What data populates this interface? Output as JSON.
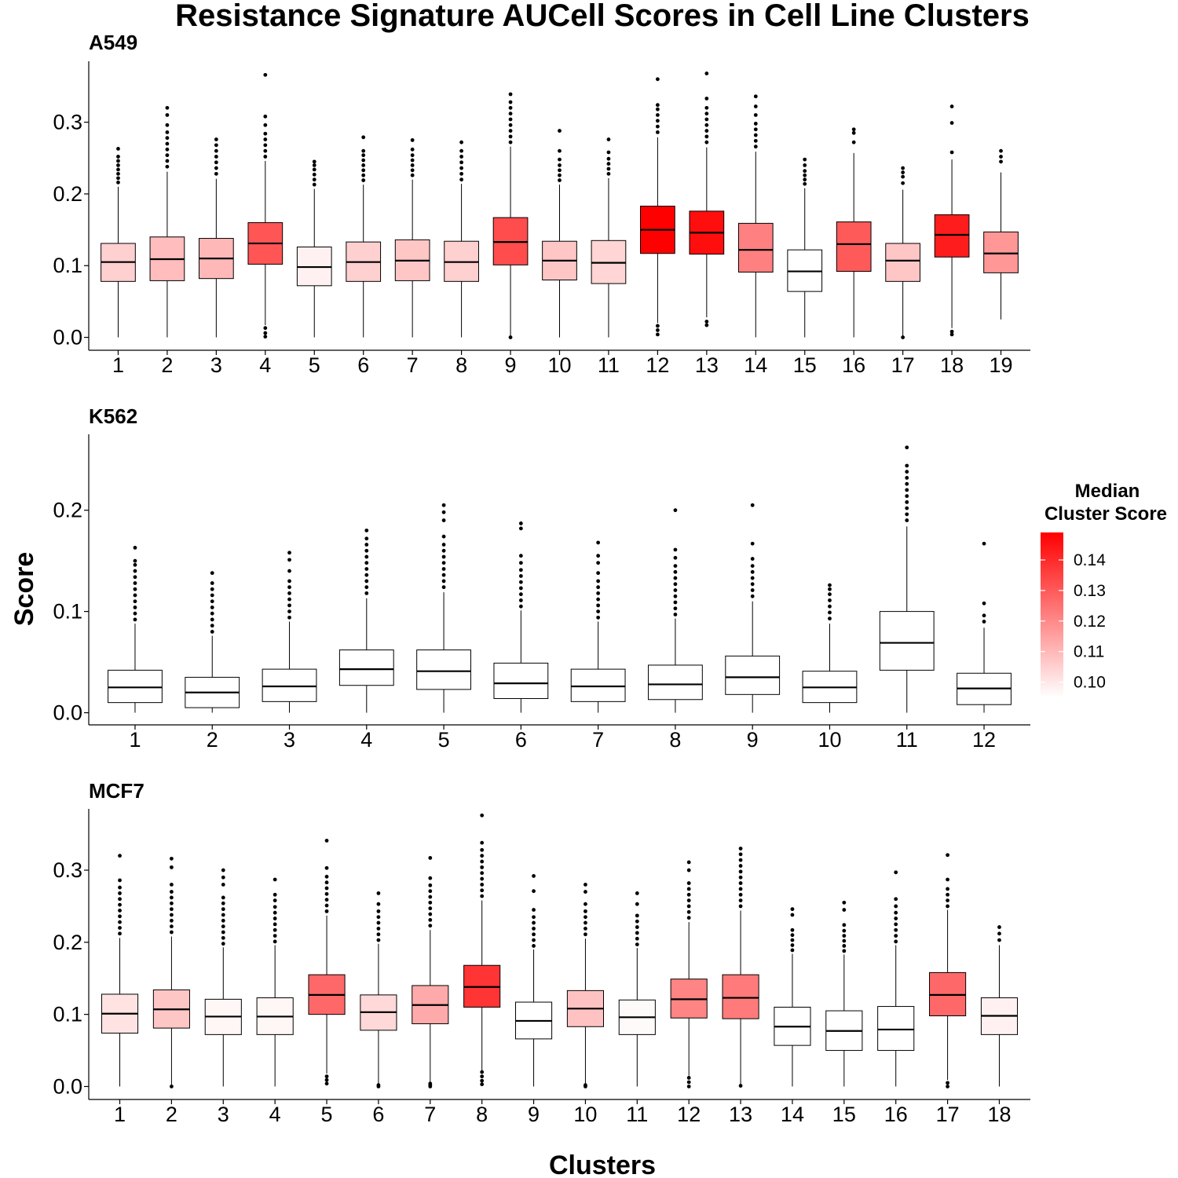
{
  "title": "Resistance Signature AUCell Scores in Cell Line Clusters",
  "xlabel": "Clusters",
  "ylabel": "Score",
  "legend": {
    "title_line1": "Median",
    "title_line2": "Cluster Score",
    "ticks": [
      0.1,
      0.11,
      0.12,
      0.13,
      0.14
    ],
    "tick_labels": [
      "0.10",
      "0.11",
      "0.12",
      "0.13",
      "0.14"
    ],
    "range": [
      0.095,
      0.149
    ],
    "color_low": "#ffffff",
    "color_high": "#ff0000",
    "placement": "right"
  },
  "chart_data": [
    {
      "type": "box",
      "panel_title": "A549",
      "ylim": [
        -0.018,
        0.385
      ],
      "yticks": [
        0.0,
        0.1,
        0.2,
        0.3
      ],
      "ytick_labels": [
        "0.0",
        "0.1",
        "0.2",
        "0.3"
      ],
      "boxes": [
        {
          "label": "1",
          "q1": 0.078,
          "median": 0.105,
          "q3": 0.131,
          "wlo": 0.0,
          "whi": 0.21,
          "outliers": [
            0.216,
            0.222,
            0.228,
            0.234,
            0.24,
            0.246,
            0.252,
            0.263
          ]
        },
        {
          "label": "2",
          "q1": 0.079,
          "median": 0.109,
          "q3": 0.14,
          "wlo": 0.0,
          "whi": 0.231,
          "outliers": [
            0.238,
            0.246,
            0.254,
            0.262,
            0.27,
            0.278,
            0.286,
            0.296,
            0.31,
            0.32
          ]
        },
        {
          "label": "3",
          "q1": 0.082,
          "median": 0.11,
          "q3": 0.138,
          "wlo": 0.0,
          "whi": 0.221,
          "outliers": [
            0.228,
            0.236,
            0.244,
            0.252,
            0.26,
            0.268,
            0.276
          ]
        },
        {
          "label": "4",
          "q1": 0.102,
          "median": 0.131,
          "q3": 0.16,
          "wlo": 0.017,
          "whi": 0.246,
          "outliers": [
            0.252,
            0.26,
            0.268,
            0.276,
            0.284,
            0.296,
            0.308,
            0.366,
            0.013,
            0.006,
            0.001
          ]
        },
        {
          "label": "5",
          "q1": 0.072,
          "median": 0.098,
          "q3": 0.126,
          "wlo": 0.0,
          "whi": 0.207,
          "outliers": [
            0.213,
            0.22,
            0.227,
            0.234,
            0.24,
            0.245
          ]
        },
        {
          "label": "6",
          "q1": 0.078,
          "median": 0.105,
          "q3": 0.133,
          "wlo": 0.0,
          "whi": 0.213,
          "outliers": [
            0.219,
            0.226,
            0.233,
            0.24,
            0.247,
            0.254,
            0.26,
            0.279
          ]
        },
        {
          "label": "7",
          "q1": 0.079,
          "median": 0.107,
          "q3": 0.136,
          "wlo": 0.0,
          "whi": 0.22,
          "outliers": [
            0.226,
            0.233,
            0.24,
            0.247,
            0.254,
            0.262,
            0.275
          ]
        },
        {
          "label": "8",
          "q1": 0.078,
          "median": 0.105,
          "q3": 0.134,
          "wlo": 0.0,
          "whi": 0.214,
          "outliers": [
            0.22,
            0.228,
            0.236,
            0.244,
            0.252,
            0.26,
            0.272
          ]
        },
        {
          "label": "9",
          "q1": 0.101,
          "median": 0.133,
          "q3": 0.167,
          "wlo": 0.0,
          "whi": 0.266,
          "outliers": [
            0.272,
            0.28,
            0.288,
            0.296,
            0.304,
            0.312,
            0.32,
            0.328,
            0.339,
            0.0
          ]
        },
        {
          "label": "10",
          "q1": 0.08,
          "median": 0.107,
          "q3": 0.134,
          "wlo": 0.0,
          "whi": 0.213,
          "outliers": [
            0.219,
            0.226,
            0.233,
            0.24,
            0.248,
            0.26,
            0.288
          ]
        },
        {
          "label": "11",
          "q1": 0.075,
          "median": 0.104,
          "q3": 0.135,
          "wlo": 0.0,
          "whi": 0.222,
          "outliers": [
            0.228,
            0.235,
            0.242,
            0.249,
            0.258,
            0.276
          ]
        },
        {
          "label": "12",
          "q1": 0.117,
          "median": 0.15,
          "q3": 0.183,
          "wlo": 0.02,
          "whi": 0.279,
          "outliers": [
            0.286,
            0.294,
            0.302,
            0.31,
            0.318,
            0.324,
            0.36,
            0.016,
            0.01,
            0.004
          ]
        },
        {
          "label": "13",
          "q1": 0.116,
          "median": 0.146,
          "q3": 0.176,
          "wlo": 0.028,
          "whi": 0.265,
          "outliers": [
            0.272,
            0.28,
            0.288,
            0.296,
            0.304,
            0.312,
            0.32,
            0.333,
            0.368,
            0.022,
            0.017
          ]
        },
        {
          "label": "14",
          "q1": 0.091,
          "median": 0.122,
          "q3": 0.159,
          "wlo": 0.0,
          "whi": 0.259,
          "outliers": [
            0.266,
            0.274,
            0.282,
            0.29,
            0.298,
            0.31,
            0.322,
            0.336
          ]
        },
        {
          "label": "15",
          "q1": 0.064,
          "median": 0.092,
          "q3": 0.122,
          "wlo": 0.0,
          "whi": 0.208,
          "outliers": [
            0.214,
            0.22,
            0.226,
            0.232,
            0.24,
            0.248
          ]
        },
        {
          "label": "16",
          "q1": 0.092,
          "median": 0.13,
          "q3": 0.161,
          "wlo": 0.0,
          "whi": 0.257,
          "outliers": [
            0.272,
            0.285,
            0.29
          ]
        },
        {
          "label": "17",
          "q1": 0.078,
          "median": 0.107,
          "q3": 0.131,
          "wlo": 0.0,
          "whi": 0.206,
          "outliers": [
            0.215,
            0.224,
            0.23,
            0.236,
            0.0
          ]
        },
        {
          "label": "18",
          "q1": 0.112,
          "median": 0.143,
          "q3": 0.171,
          "wlo": 0.013,
          "whi": 0.248,
          "outliers": [
            0.258,
            0.299,
            0.322,
            0.008,
            0.004
          ]
        },
        {
          "label": "19",
          "q1": 0.09,
          "median": 0.117,
          "q3": 0.147,
          "wlo": 0.025,
          "whi": 0.23,
          "outliers": [
            0.245,
            0.252,
            0.26
          ]
        }
      ]
    },
    {
      "type": "box",
      "panel_title": "K562",
      "ylim": [
        -0.012,
        0.275
      ],
      "yticks": [
        0.0,
        0.1,
        0.2
      ],
      "ytick_labels": [
        "0.0",
        "0.1",
        "0.2"
      ],
      "boxes": [
        {
          "label": "1",
          "q1": 0.01,
          "median": 0.025,
          "q3": 0.042,
          "wlo": 0.0,
          "whi": 0.088,
          "outliers": [
            0.092,
            0.098,
            0.104,
            0.11,
            0.116,
            0.122,
            0.128,
            0.134,
            0.14,
            0.146,
            0.15,
            0.163
          ]
        },
        {
          "label": "2",
          "q1": 0.005,
          "median": 0.02,
          "q3": 0.035,
          "wlo": 0.0,
          "whi": 0.076,
          "outliers": [
            0.08,
            0.086,
            0.092,
            0.098,
            0.104,
            0.11,
            0.116,
            0.122,
            0.128,
            0.138
          ]
        },
        {
          "label": "3",
          "q1": 0.011,
          "median": 0.026,
          "q3": 0.043,
          "wlo": 0.0,
          "whi": 0.09,
          "outliers": [
            0.094,
            0.1,
            0.106,
            0.112,
            0.118,
            0.124,
            0.13,
            0.14,
            0.151,
            0.158
          ]
        },
        {
          "label": "4",
          "q1": 0.027,
          "median": 0.043,
          "q3": 0.062,
          "wlo": 0.0,
          "whi": 0.113,
          "outliers": [
            0.118,
            0.124,
            0.13,
            0.136,
            0.142,
            0.148,
            0.154,
            0.16,
            0.166,
            0.172,
            0.18
          ]
        },
        {
          "label": "5",
          "q1": 0.023,
          "median": 0.041,
          "q3": 0.062,
          "wlo": 0.0,
          "whi": 0.119,
          "outliers": [
            0.124,
            0.13,
            0.136,
            0.142,
            0.148,
            0.154,
            0.16,
            0.166,
            0.174,
            0.19,
            0.198,
            0.205
          ]
        },
        {
          "label": "6",
          "q1": 0.014,
          "median": 0.029,
          "q3": 0.049,
          "wlo": 0.0,
          "whi": 0.101,
          "outliers": [
            0.105,
            0.111,
            0.117,
            0.123,
            0.129,
            0.135,
            0.141,
            0.148,
            0.155,
            0.182,
            0.187
          ]
        },
        {
          "label": "7",
          "q1": 0.011,
          "median": 0.026,
          "q3": 0.043,
          "wlo": 0.0,
          "whi": 0.09,
          "outliers": [
            0.094,
            0.1,
            0.106,
            0.112,
            0.118,
            0.124,
            0.13,
            0.138,
            0.148,
            0.155,
            0.168
          ]
        },
        {
          "label": "8",
          "q1": 0.013,
          "median": 0.028,
          "q3": 0.047,
          "wlo": 0.0,
          "whi": 0.093,
          "outliers": [
            0.097,
            0.103,
            0.109,
            0.115,
            0.121,
            0.127,
            0.133,
            0.139,
            0.145,
            0.153,
            0.161,
            0.2
          ]
        },
        {
          "label": "9",
          "q1": 0.018,
          "median": 0.035,
          "q3": 0.056,
          "wlo": 0.0,
          "whi": 0.11,
          "outliers": [
            0.115,
            0.121,
            0.127,
            0.133,
            0.139,
            0.145,
            0.152,
            0.167,
            0.205
          ]
        },
        {
          "label": "10",
          "q1": 0.01,
          "median": 0.025,
          "q3": 0.041,
          "wlo": 0.0,
          "whi": 0.088,
          "outliers": [
            0.093,
            0.099,
            0.105,
            0.111,
            0.117,
            0.122,
            0.126
          ]
        },
        {
          "label": "11",
          "q1": 0.042,
          "median": 0.069,
          "q3": 0.1,
          "wlo": 0.0,
          "whi": 0.184,
          "outliers": [
            0.19,
            0.196,
            0.202,
            0.208,
            0.214,
            0.22,
            0.226,
            0.232,
            0.238,
            0.244,
            0.262
          ]
        },
        {
          "label": "12",
          "q1": 0.008,
          "median": 0.024,
          "q3": 0.039,
          "wlo": 0.0,
          "whi": 0.084,
          "outliers": [
            0.09,
            0.096,
            0.108,
            0.167
          ]
        }
      ]
    },
    {
      "type": "box",
      "panel_title": "MCF7",
      "ylim": [
        -0.018,
        0.385
      ],
      "yticks": [
        0.0,
        0.1,
        0.2,
        0.3
      ],
      "ytick_labels": [
        "0.0",
        "0.1",
        "0.2",
        "0.3"
      ],
      "boxes": [
        {
          "label": "1",
          "q1": 0.074,
          "median": 0.101,
          "q3": 0.128,
          "wlo": 0.0,
          "whi": 0.206,
          "outliers": [
            0.212,
            0.22,
            0.228,
            0.236,
            0.244,
            0.252,
            0.26,
            0.268,
            0.276,
            0.286,
            0.32
          ]
        },
        {
          "label": "2",
          "q1": 0.081,
          "median": 0.107,
          "q3": 0.134,
          "wlo": 0.0,
          "whi": 0.208,
          "outliers": [
            0.214,
            0.222,
            0.23,
            0.238,
            0.246,
            0.254,
            0.262,
            0.27,
            0.28,
            0.304,
            0.316,
            0.0
          ]
        },
        {
          "label": "3",
          "q1": 0.072,
          "median": 0.097,
          "q3": 0.121,
          "wlo": 0.0,
          "whi": 0.193,
          "outliers": [
            0.198,
            0.206,
            0.214,
            0.222,
            0.23,
            0.238,
            0.246,
            0.254,
            0.262,
            0.28,
            0.29,
            0.3
          ]
        },
        {
          "label": "4",
          "q1": 0.072,
          "median": 0.097,
          "q3": 0.123,
          "wlo": 0.0,
          "whi": 0.196,
          "outliers": [
            0.201,
            0.209,
            0.217,
            0.225,
            0.233,
            0.241,
            0.249,
            0.258,
            0.266,
            0.287
          ]
        },
        {
          "label": "5",
          "q1": 0.1,
          "median": 0.127,
          "q3": 0.155,
          "wlo": 0.018,
          "whi": 0.237,
          "outliers": [
            0.243,
            0.251,
            0.259,
            0.267,
            0.275,
            0.283,
            0.291,
            0.303,
            0.341,
            0.014,
            0.009,
            0.004
          ]
        },
        {
          "label": "6",
          "q1": 0.078,
          "median": 0.103,
          "q3": 0.127,
          "wlo": 0.003,
          "whi": 0.198,
          "outliers": [
            0.203,
            0.211,
            0.219,
            0.227,
            0.235,
            0.243,
            0.253,
            0.268,
            0.002,
            0.0
          ]
        },
        {
          "label": "7",
          "q1": 0.087,
          "median": 0.113,
          "q3": 0.14,
          "wlo": 0.006,
          "whi": 0.217,
          "outliers": [
            0.223,
            0.231,
            0.239,
            0.247,
            0.255,
            0.263,
            0.271,
            0.279,
            0.289,
            0.317,
            0.004,
            0.002,
            0.0
          ]
        },
        {
          "label": "8",
          "q1": 0.11,
          "median": 0.138,
          "q3": 0.168,
          "wlo": 0.022,
          "whi": 0.258,
          "outliers": [
            0.264,
            0.272,
            0.28,
            0.288,
            0.296,
            0.304,
            0.312,
            0.32,
            0.328,
            0.338,
            0.376,
            0.02,
            0.014,
            0.008,
            0.003
          ]
        },
        {
          "label": "9",
          "q1": 0.066,
          "median": 0.091,
          "q3": 0.117,
          "wlo": 0.0,
          "whi": 0.19,
          "outliers": [
            0.195,
            0.203,
            0.211,
            0.219,
            0.227,
            0.235,
            0.245,
            0.271,
            0.292
          ]
        },
        {
          "label": "10",
          "q1": 0.083,
          "median": 0.108,
          "q3": 0.133,
          "wlo": 0.0,
          "whi": 0.205,
          "outliers": [
            0.211,
            0.219,
            0.227,
            0.235,
            0.243,
            0.253,
            0.27,
            0.28,
            0.002,
            0.0
          ]
        },
        {
          "label": "11",
          "q1": 0.072,
          "median": 0.096,
          "q3": 0.12,
          "wlo": 0.0,
          "whi": 0.192,
          "outliers": [
            0.197,
            0.205,
            0.213,
            0.221,
            0.229,
            0.237,
            0.253,
            0.268
          ]
        },
        {
          "label": "12",
          "q1": 0.095,
          "median": 0.121,
          "q3": 0.149,
          "wlo": 0.015,
          "whi": 0.228,
          "outliers": [
            0.234,
            0.242,
            0.25,
            0.258,
            0.266,
            0.274,
            0.282,
            0.3,
            0.311,
            0.012,
            0.006,
            0.0
          ]
        },
        {
          "label": "13",
          "q1": 0.094,
          "median": 0.123,
          "q3": 0.155,
          "wlo": 0.002,
          "whi": 0.244,
          "outliers": [
            0.25,
            0.258,
            0.266,
            0.274,
            0.282,
            0.29,
            0.298,
            0.306,
            0.314,
            0.322,
            0.33,
            0.001
          ]
        },
        {
          "label": "14",
          "q1": 0.057,
          "median": 0.083,
          "q3": 0.11,
          "wlo": 0.0,
          "whi": 0.184,
          "outliers": [
            0.189,
            0.196,
            0.203,
            0.21,
            0.217,
            0.238,
            0.246
          ]
        },
        {
          "label": "15",
          "q1": 0.05,
          "median": 0.077,
          "q3": 0.105,
          "wlo": 0.0,
          "whi": 0.183,
          "outliers": [
            0.188,
            0.195,
            0.202,
            0.209,
            0.216,
            0.224,
            0.245,
            0.255
          ]
        },
        {
          "label": "16",
          "q1": 0.05,
          "median": 0.079,
          "q3": 0.111,
          "wlo": 0.0,
          "whi": 0.196,
          "outliers": [
            0.201,
            0.209,
            0.217,
            0.225,
            0.233,
            0.241,
            0.25,
            0.26,
            0.297
          ]
        },
        {
          "label": "17",
          "q1": 0.098,
          "median": 0.127,
          "q3": 0.158,
          "wlo": 0.009,
          "whi": 0.245,
          "outliers": [
            0.25,
            0.258,
            0.266,
            0.274,
            0.287,
            0.321,
            0.005,
            0.0
          ]
        },
        {
          "label": "18",
          "q1": 0.072,
          "median": 0.098,
          "q3": 0.123,
          "wlo": 0.0,
          "whi": 0.196,
          "outliers": [
            0.203,
            0.212,
            0.221
          ]
        }
      ]
    }
  ]
}
